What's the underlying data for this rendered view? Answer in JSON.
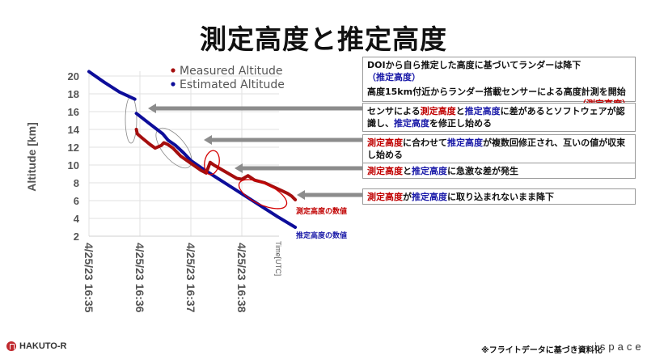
{
  "title": "測定高度と推定高度",
  "chart_data": {
    "type": "line",
    "title": "測定高度と推定高度",
    "xlabel": "Time[UTC]",
    "ylabel": "Altitude [km]",
    "ylim": [
      2,
      20
    ],
    "yticks": [
      2,
      4,
      6,
      8,
      10,
      12,
      14,
      16,
      18,
      20
    ],
    "xticks": [
      "4/25/23 16:35",
      "4/25/23 16:36",
      "4/25/23 16:37",
      "4/25/23 16:38"
    ],
    "grid": true,
    "legend_position": "top-right inside",
    "x_units": "minutes after 16:35 UTC",
    "series": [
      {
        "name": "Measured Altitude",
        "color": "#a50e0e",
        "points": [
          [
            0.93,
            14.0
          ],
          [
            0.95,
            13.5
          ],
          [
            1.05,
            13.0
          ],
          [
            1.2,
            12.3
          ],
          [
            1.3,
            11.9
          ],
          [
            1.42,
            12.2
          ],
          [
            1.47,
            12.5
          ],
          [
            1.55,
            12.3
          ],
          [
            1.65,
            11.9
          ],
          [
            1.8,
            11.0
          ],
          [
            2.0,
            10.2
          ],
          [
            2.2,
            9.4
          ],
          [
            2.3,
            9.1
          ],
          [
            2.38,
            10.3
          ],
          [
            2.45,
            10.0
          ],
          [
            2.6,
            9.5
          ],
          [
            2.75,
            9.0
          ],
          [
            2.9,
            8.5
          ],
          [
            3.0,
            8.4
          ],
          [
            3.12,
            8.8
          ],
          [
            3.25,
            8.3
          ],
          [
            3.45,
            8.0
          ],
          [
            3.6,
            7.6
          ],
          [
            3.75,
            7.2
          ],
          [
            3.9,
            6.8
          ],
          [
            3.98,
            6.5
          ],
          [
            4.05,
            6.1
          ]
        ]
      },
      {
        "name": "Estimated Altitude",
        "color": "#0d0d9a",
        "points": [
          [
            0.0,
            20.5
          ],
          [
            0.3,
            19.3
          ],
          [
            0.6,
            18.2
          ],
          [
            0.9,
            17.4
          ],
          [
            0.93,
            15.8
          ],
          [
            1.2,
            14.6
          ],
          [
            1.45,
            13.5
          ],
          [
            1.55,
            12.8
          ],
          [
            1.7,
            12.2
          ],
          [
            1.85,
            11.4
          ],
          [
            2.0,
            10.5
          ],
          [
            2.2,
            9.7
          ],
          [
            2.5,
            8.6
          ],
          [
            2.8,
            7.5
          ],
          [
            3.1,
            6.4
          ],
          [
            3.4,
            5.3
          ],
          [
            3.7,
            4.2
          ],
          [
            4.05,
            3.0
          ]
        ]
      }
    ],
    "annotations": [
      "測定高度の数値",
      "推定高度の数値"
    ]
  },
  "legend": {
    "measured": "Measured Altitude",
    "estimated": "Estimated Altitude"
  },
  "axis": {
    "ylabel": "Altitude [km]",
    "xlabel": "Time[UTC]",
    "yticks": [
      "20",
      "18",
      "16",
      "14",
      "12",
      "10",
      "8",
      "6",
      "4",
      "2"
    ],
    "xticks": [
      "4/25/23 16:35",
      "4/25/23 16:36",
      "4/25/23 16:37",
      "4/25/23 16:38"
    ]
  },
  "line_labels": {
    "measured": "測定高度の数値",
    "estimated": "推定高度の数値"
  },
  "notes": {
    "box1_line1_a": "DOIから自ら推定した高度に基づいてランダーは降下",
    "box1_line1_b": "（推定高度）",
    "box1_line2": "高度15km付近からランダー搭載センサーによる高度計測を開始",
    "box1_line3": "（測定高度）",
    "box2_a": "センサによる",
    "box2_b": "測定高度",
    "box2_c": "と",
    "box2_d": "推定高度",
    "box2_e": "に差があるとソフトウェアが認識し、",
    "box2_f": "推定高度",
    "box2_g": "を修正し始める",
    "box3_a": "測定高度",
    "box3_b": "に合わせて",
    "box3_c": "推定高度",
    "box3_d": "が複数回修正され、互いの値が収束し始める",
    "box4_a": "測定高度",
    "box4_b": "と",
    "box4_c": "推定高度",
    "box4_d": "に急激な差が発生",
    "box5_a": "測定高度",
    "box5_b": "が",
    "box5_c": "推定高度",
    "box5_d": "に取り込まれないまま降下"
  },
  "footer": {
    "brand_left": "HAKUTO-R",
    "note": "※フライトデータに基づき資料化",
    "brand_right": "ispace"
  },
  "colors": {
    "measured": "#a50e0e",
    "estimated": "#0d0d9a",
    "arrow": "#8c8c8c",
    "highlight": "#d40000"
  }
}
